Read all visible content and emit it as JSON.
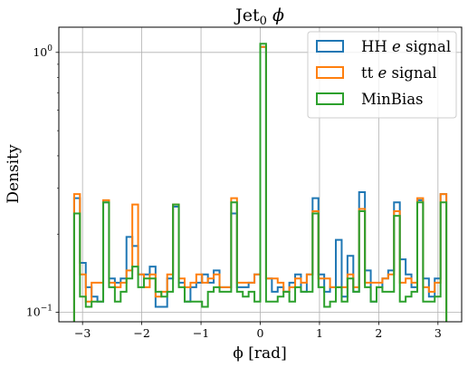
{
  "chart_data": {
    "type": "step-histogram",
    "title": "Jet$_0$ $\\phi$",
    "title_parts": {
      "main": "Jet",
      "sub": "0",
      "symbol": "ϕ"
    },
    "xlabel": "ϕ [rad]",
    "ylabel": "Density",
    "xlim": [
      -3.4,
      3.4
    ],
    "ylim": [
      0.092,
      1.25
    ],
    "yscale": "log",
    "grid": true,
    "legend_position": "top-right",
    "x_ticks": [
      -3,
      -2,
      -1,
      0,
      1,
      2,
      3
    ],
    "x_tick_labels": [
      "−3",
      "−2",
      "−1",
      "0",
      "1",
      "2",
      "3"
    ],
    "y_ticks": [
      0.1,
      1
    ],
    "y_tick_labels": [
      {
        "base": "10",
        "exp": "−1"
      },
      {
        "base": "10",
        "exp": "0"
      }
    ],
    "bin_range": [
      -3.1416,
      3.1416
    ],
    "n_bins": 64,
    "series": [
      {
        "name": "HH e signal",
        "name_parts": {
          "pre": "HH ",
          "symbol": "e",
          "post": " signal"
        },
        "color": "#1f77b4",
        "values": [
          0.275,
          0.155,
          0.125,
          0.115,
          0.11,
          0.265,
          0.135,
          0.13,
          0.135,
          0.195,
          0.18,
          0.14,
          0.14,
          0.15,
          0.105,
          0.105,
          0.135,
          0.255,
          0.13,
          0.11,
          0.125,
          0.13,
          0.14,
          0.13,
          0.145,
          0.125,
          0.125,
          0.24,
          0.125,
          0.125,
          0.13,
          0.14,
          1.05,
          0.135,
          0.12,
          0.125,
          0.12,
          0.13,
          0.14,
          0.12,
          0.14,
          0.275,
          0.14,
          0.12,
          0.125,
          0.19,
          0.115,
          0.165,
          0.12,
          0.29,
          0.145,
          0.11,
          0.125,
          0.135,
          0.145,
          0.265,
          0.16,
          0.14,
          0.125,
          0.27,
          0.135,
          0.115,
          0.135,
          0.285
        ]
      },
      {
        "name": "tt e signal",
        "name_parts": {
          "pre": "tt ",
          "symbol": "e",
          "post": " signal"
        },
        "color": "#ff7f0e",
        "values": [
          0.285,
          0.14,
          0.11,
          0.13,
          0.13,
          0.27,
          0.13,
          0.125,
          0.13,
          0.145,
          0.26,
          0.14,
          0.125,
          0.14,
          0.115,
          0.12,
          0.14,
          0.26,
          0.135,
          0.125,
          0.13,
          0.14,
          0.13,
          0.135,
          0.14,
          0.125,
          0.125,
          0.275,
          0.13,
          0.13,
          0.13,
          0.14,
          1.05,
          0.135,
          0.135,
          0.13,
          0.12,
          0.125,
          0.135,
          0.13,
          0.14,
          0.245,
          0.135,
          0.135,
          0.125,
          0.125,
          0.125,
          0.14,
          0.125,
          0.25,
          0.13,
          0.13,
          0.13,
          0.135,
          0.14,
          0.245,
          0.13,
          0.135,
          0.13,
          0.275,
          0.125,
          0.12,
          0.13,
          0.285
        ]
      },
      {
        "name": "MinBias",
        "name_parts": {
          "pre": "MinBias",
          "symbol": "",
          "post": ""
        },
        "color": "#2ca02c",
        "values": [
          0.24,
          0.115,
          0.105,
          0.11,
          0.11,
          0.265,
          0.125,
          0.11,
          0.12,
          0.135,
          0.15,
          0.125,
          0.135,
          0.135,
          0.12,
          0.115,
          0.12,
          0.26,
          0.125,
          0.11,
          0.11,
          0.11,
          0.105,
          0.12,
          0.125,
          0.12,
          0.12,
          0.265,
          0.12,
          0.115,
          0.12,
          0.11,
          1.08,
          0.11,
          0.11,
          0.115,
          0.12,
          0.11,
          0.125,
          0.12,
          0.12,
          0.24,
          0.125,
          0.105,
          0.11,
          0.125,
          0.11,
          0.135,
          0.12,
          0.245,
          0.125,
          0.11,
          0.125,
          0.12,
          0.12,
          0.235,
          0.11,
          0.115,
          0.12,
          0.265,
          0.11,
          0.11,
          0.115,
          0.265
        ]
      }
    ]
  }
}
